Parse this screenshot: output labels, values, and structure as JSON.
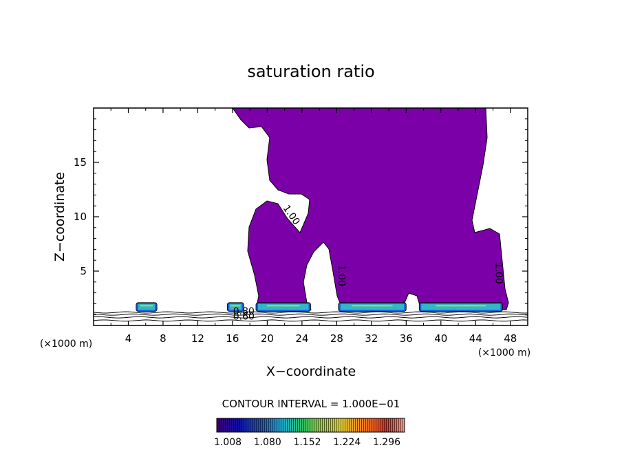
{
  "chart_data": {
    "type": "heatmap",
    "title": "saturation ratio",
    "xlabel": "X−coordinate",
    "ylabel": "Z−coordinate",
    "x_unit_label": "(×1000 m)",
    "x_unit_label_right": "(×1000 m)",
    "xlim": [
      0,
      50
    ],
    "ylim": [
      0,
      20
    ],
    "x_ticks": [
      4,
      8,
      12,
      16,
      20,
      24,
      28,
      32,
      36,
      40,
      44,
      48
    ],
    "y_ticks": [
      5,
      10,
      15
    ],
    "grid": false,
    "contour_interval_text": "CONTOUR INTERVAL = 1.000E−01",
    "contour_labels": [
      {
        "text": "1.00",
        "x": 22.5,
        "z": 10.0,
        "angle": 55
      },
      {
        "text": "1.00",
        "x": 28.2,
        "z": 4.6,
        "angle": 90
      },
      {
        "text": "1.00",
        "x": 46.3,
        "z": 4.8,
        "angle": 90
      },
      {
        "text": "0.80",
        "x": 17.3,
        "z": 1.0,
        "angle": 0
      },
      {
        "text": "0.60",
        "x": 17.3,
        "z": 0.55,
        "angle": 0
      }
    ],
    "saturated_region_color": "#7b00a8",
    "colorbar": {
      "tick_labels": [
        "1.008",
        "1.080",
        "1.152",
        "1.224",
        "1.296"
      ],
      "range": [
        1.0,
        1.33
      ]
    }
  }
}
